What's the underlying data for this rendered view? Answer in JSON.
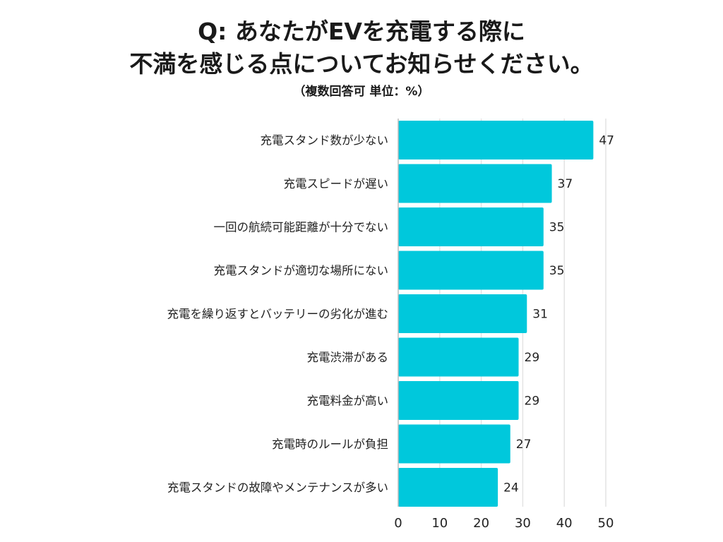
{
  "chart_data": {
    "type": "bar",
    "orientation": "horizontal",
    "title_lines": [
      "Q: あなたがEVを充電する際に",
      "不満を感じる点についてお知らせください。"
    ],
    "subtitle": "（複数回答可 単位：%）",
    "categories": [
      "充電スタンド数が少ない",
      "充電スピードが遅い",
      "一回の航続可能距離が十分でない",
      "充電スタンドが適切な場所にない",
      "充電を繰り返すとバッテリーの劣化が進む",
      "充電渋滞がある",
      "充電料金が高い",
      "充電時のルールが負担",
      "充電スタンドの故障やメンテナンスが多い"
    ],
    "values": [
      47,
      37,
      35,
      35,
      31,
      29,
      29,
      27,
      24
    ],
    "xlim": [
      0,
      50
    ],
    "xticks": [
      "0",
      "10",
      "20",
      "30",
      "40",
      "50"
    ],
    "bar_color": "#00c8dc",
    "grid": true
  }
}
